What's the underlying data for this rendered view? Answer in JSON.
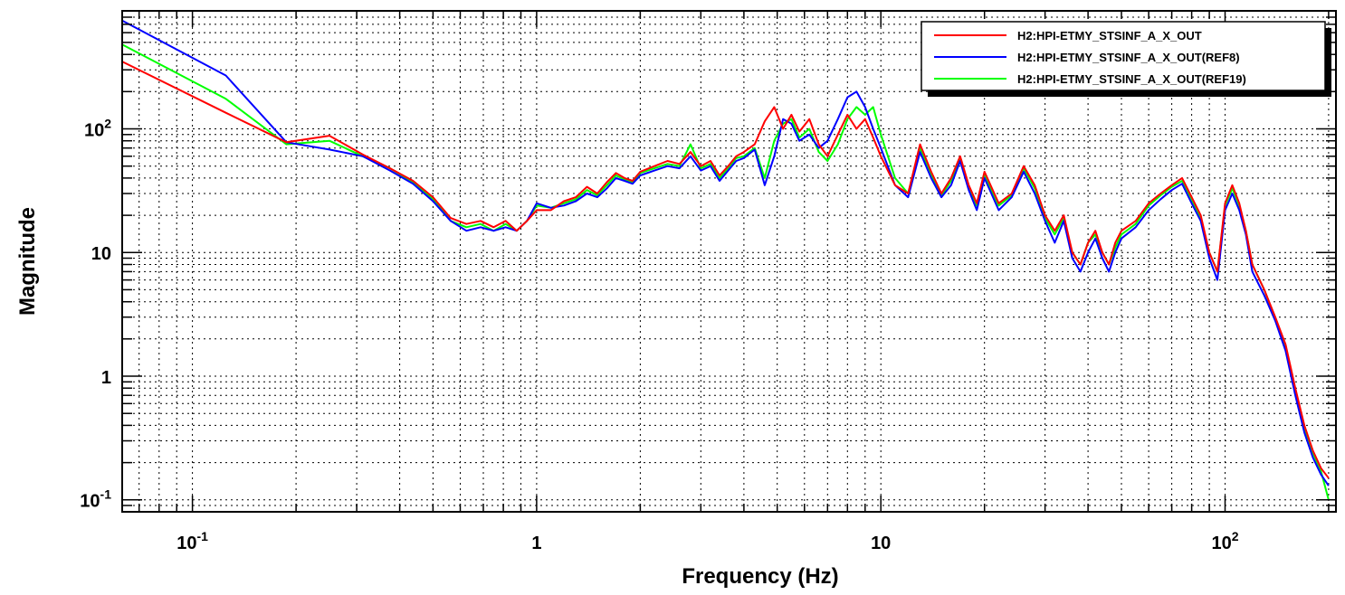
{
  "chart_data": {
    "type": "line",
    "title": "",
    "xlabel": "Frequency (Hz)",
    "ylabel": "Magnitude",
    "x_scale": "log",
    "y_scale": "log",
    "xlim": [
      0.0625,
      210
    ],
    "ylim": [
      0.08,
      900
    ],
    "grid": true,
    "legend_position": "top-right",
    "x_ticks": [
      {
        "value": 0.1,
        "mantissa": "10",
        "exp": "-1"
      },
      {
        "value": 1,
        "mantissa": "1",
        "exp": ""
      },
      {
        "value": 10,
        "mantissa": "10",
        "exp": ""
      },
      {
        "value": 100,
        "mantissa": "10",
        "exp": "2"
      }
    ],
    "y_ticks": [
      {
        "value": 0.1,
        "mantissa": "10",
        "exp": "-1"
      },
      {
        "value": 1,
        "mantissa": "1",
        "exp": ""
      },
      {
        "value": 10,
        "mantissa": "10",
        "exp": ""
      },
      {
        "value": 100,
        "mantissa": "10",
        "exp": "2"
      }
    ],
    "series": [
      {
        "name": "H2:HPI-ETMY_STSINF_A_X_OUT",
        "color": "#ff0000",
        "x": [
          0.0625,
          0.125,
          0.1875,
          0.25,
          0.3125,
          0.375,
          0.4375,
          0.5,
          0.5625,
          0.625,
          0.6875,
          0.75,
          0.8125,
          0.875,
          0.9375,
          1,
          1.1,
          1.2,
          1.3,
          1.4,
          1.5,
          1.6,
          1.7,
          1.8,
          1.9,
          2,
          2.2,
          2.4,
          2.6,
          2.8,
          3,
          3.2,
          3.4,
          3.6,
          3.8,
          4,
          4.3,
          4.6,
          4.9,
          5.2,
          5.5,
          5.8,
          6.2,
          6.6,
          7,
          7.5,
          8,
          8.5,
          9,
          9.5,
          10,
          11,
          12,
          13,
          14,
          15,
          16,
          17,
          18,
          19,
          20,
          22,
          24,
          26,
          28,
          30,
          32,
          34,
          36,
          38,
          40,
          42,
          44,
          46,
          48,
          50,
          55,
          60,
          65,
          70,
          75,
          80,
          85,
          90,
          95,
          100,
          105,
          110,
          115,
          120,
          130,
          140,
          150,
          160,
          170,
          180,
          190,
          200
        ],
        "y": [
          350,
          135,
          78,
          88,
          62,
          48,
          38,
          28,
          19,
          17,
          18,
          16,
          18,
          15,
          18,
          22,
          22,
          26,
          28,
          34,
          30,
          37,
          44,
          40,
          38,
          45,
          50,
          55,
          52,
          65,
          50,
          55,
          42,
          50,
          60,
          65,
          75,
          115,
          150,
          100,
          130,
          95,
          120,
          75,
          60,
          90,
          130,
          100,
          120,
          85,
          60,
          35,
          30,
          75,
          45,
          30,
          40,
          60,
          35,
          25,
          45,
          25,
          30,
          50,
          35,
          20,
          15,
          20,
          10,
          8,
          12,
          15,
          10,
          8,
          12,
          15,
          18,
          25,
          30,
          35,
          40,
          28,
          20,
          10,
          7,
          25,
          35,
          25,
          15,
          8,
          5,
          3,
          1.8,
          0.8,
          0.4,
          0.25,
          0.18,
          0.15
        ]
      },
      {
        "name": "H2:HPI-ETMY_STSINF_A_X_OUT(REF8)",
        "color": "#0000ff",
        "x": [
          0.0625,
          0.125,
          0.1875,
          0.25,
          0.3125,
          0.375,
          0.4375,
          0.5,
          0.5625,
          0.625,
          0.6875,
          0.75,
          0.8125,
          0.875,
          0.9375,
          1,
          1.1,
          1.2,
          1.3,
          1.4,
          1.5,
          1.6,
          1.7,
          1.8,
          1.9,
          2,
          2.2,
          2.4,
          2.6,
          2.8,
          3,
          3.2,
          3.4,
          3.6,
          3.8,
          4,
          4.3,
          4.6,
          4.9,
          5.2,
          5.5,
          5.8,
          6.2,
          6.6,
          7,
          7.5,
          8,
          8.5,
          9,
          9.5,
          10,
          11,
          12,
          13,
          14,
          15,
          16,
          17,
          18,
          19,
          20,
          22,
          24,
          26,
          28,
          30,
          32,
          34,
          36,
          38,
          40,
          42,
          44,
          46,
          48,
          50,
          55,
          60,
          65,
          70,
          75,
          80,
          85,
          90,
          95,
          100,
          105,
          110,
          115,
          120,
          130,
          140,
          150,
          160,
          170,
          180,
          190,
          200
        ],
        "y": [
          750,
          270,
          78,
          68,
          60,
          46,
          36,
          26,
          18,
          15,
          16,
          15,
          16,
          15,
          18,
          25,
          23,
          24,
          26,
          30,
          28,
          33,
          40,
          38,
          36,
          42,
          46,
          50,
          48,
          60,
          46,
          50,
          38,
          46,
          55,
          58,
          68,
          35,
          60,
          120,
          110,
          80,
          90,
          70,
          80,
          120,
          180,
          200,
          150,
          100,
          70,
          35,
          28,
          65,
          40,
          28,
          35,
          55,
          32,
          22,
          40,
          22,
          28,
          45,
          30,
          18,
          12,
          18,
          9,
          7,
          10,
          13,
          9,
          7,
          10,
          13,
          16,
          22,
          27,
          32,
          36,
          25,
          18,
          9,
          6,
          22,
          30,
          22,
          14,
          7,
          4.5,
          2.8,
          1.6,
          0.7,
          0.35,
          0.22,
          0.16,
          0.13
        ]
      },
      {
        "name": "H2:HPI-ETMY_STSINF_A_X_OUT(REF19)",
        "color": "#00ff00",
        "x": [
          0.0625,
          0.125,
          0.1875,
          0.25,
          0.3125,
          0.375,
          0.4375,
          0.5,
          0.5625,
          0.625,
          0.6875,
          0.75,
          0.8125,
          0.875,
          0.9375,
          1,
          1.1,
          1.2,
          1.3,
          1.4,
          1.5,
          1.6,
          1.7,
          1.8,
          1.9,
          2,
          2.2,
          2.4,
          2.6,
          2.8,
          3,
          3.2,
          3.4,
          3.6,
          3.8,
          4,
          4.3,
          4.6,
          4.9,
          5.2,
          5.5,
          5.8,
          6.2,
          6.6,
          7,
          7.5,
          8,
          8.5,
          9,
          9.5,
          10,
          11,
          12,
          13,
          14,
          15,
          16,
          17,
          18,
          19,
          20,
          22,
          24,
          26,
          28,
          30,
          32,
          34,
          36,
          38,
          40,
          42,
          44,
          46,
          48,
          50,
          55,
          60,
          65,
          70,
          75,
          80,
          85,
          90,
          95,
          100,
          105,
          110,
          115,
          120,
          130,
          140,
          150,
          160,
          170,
          180,
          190,
          200
        ],
        "y": [
          480,
          175,
          75,
          80,
          60,
          48,
          37,
          27,
          18,
          16,
          17,
          15,
          17,
          15,
          18,
          24,
          23,
          25,
          27,
          32,
          29,
          35,
          42,
          39,
          37,
          44,
          48,
          52,
          50,
          75,
          48,
          52,
          40,
          48,
          58,
          60,
          70,
          40,
          80,
          110,
          120,
          85,
          100,
          65,
          55,
          75,
          120,
          150,
          130,
          150,
          90,
          40,
          30,
          70,
          42,
          29,
          38,
          58,
          34,
          24,
          42,
          24,
          29,
          48,
          33,
          19,
          14,
          19,
          10,
          8,
          12,
          14,
          10,
          8,
          11,
          14,
          17,
          24,
          29,
          34,
          38,
          27,
          19,
          10,
          7,
          24,
          33,
          24,
          15,
          8,
          5,
          2.9,
          1.7,
          0.75,
          0.38,
          0.24,
          0.17,
          0.1
        ]
      }
    ]
  }
}
